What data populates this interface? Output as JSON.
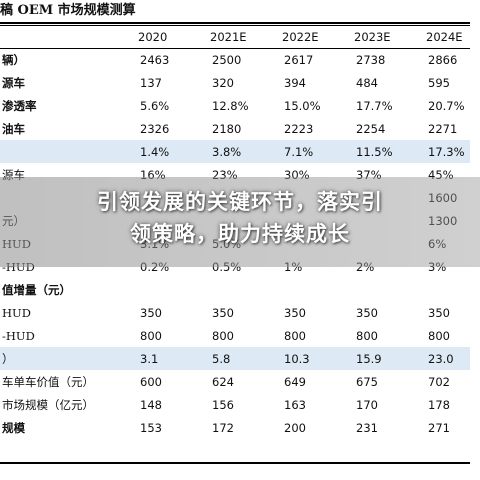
{
  "document": {
    "title": "稿 OEM 市场规模测算",
    "headline": {
      "line1": "引领发展的关键环节，落实引",
      "line2": "领策略，助力持续成长"
    },
    "columns": [
      "",
      "2020",
      "2021E",
      "2022E",
      "2023E",
      "2024E"
    ],
    "rows": [
      {
        "label": "辆）",
        "bold": true,
        "shade": false,
        "values": [
          "2463",
          "2500",
          "2617",
          "2738",
          "2866"
        ]
      },
      {
        "label": "源车",
        "bold": true,
        "shade": false,
        "values": [
          "137",
          "320",
          "394",
          "484",
          "595"
        ]
      },
      {
        "label": "渗透率",
        "bold": true,
        "shade": false,
        "values": [
          "5.6%",
          "12.8%",
          "15.0%",
          "17.7%",
          "20.7%"
        ]
      },
      {
        "label": "油车",
        "bold": true,
        "shade": false,
        "values": [
          "2326",
          "2180",
          "2223",
          "2254",
          "2271"
        ]
      },
      {
        "label": "",
        "bold": false,
        "shade": true,
        "values": [
          "1.4%",
          "3.8%",
          "7.1%",
          "11.5%",
          "17.3%"
        ]
      },
      {
        "label": "源车",
        "bold": false,
        "shade": false,
        "values": [
          "16%",
          "23%",
          "30%",
          "37%",
          "45%"
        ]
      },
      {
        "label": "",
        "bold": false,
        "shade": false,
        "values": [
          "",
          "",
          "",
          "",
          "1600"
        ]
      },
      {
        "label": "元）",
        "bold": false,
        "shade": false,
        "values": [
          "",
          "",
          "",
          "",
          "1300"
        ]
      },
      {
        "label": "HUD",
        "bold": false,
        "shade": false,
        "values": [
          "3.1%",
          "5.0%",
          "",
          "",
          "6%"
        ]
      },
      {
        "label": "-HUD",
        "bold": false,
        "shade": false,
        "values": [
          "0.2%",
          "0.5%",
          "1%",
          "2%",
          "3%"
        ]
      },
      {
        "label": "值增量（元）",
        "bold": true,
        "shade": false,
        "values": [
          "",
          "",
          "",
          "",
          ""
        ]
      },
      {
        "label": "HUD",
        "bold": false,
        "shade": false,
        "values": [
          "350",
          "350",
          "350",
          "350",
          "350"
        ]
      },
      {
        "label": "-HUD",
        "bold": false,
        "shade": false,
        "values": [
          "800",
          "800",
          "800",
          "800",
          "800"
        ]
      },
      {
        "label": "）",
        "bold": false,
        "shade": true,
        "values": [
          "3.1",
          "5.8",
          "10.3",
          "15.9",
          "23.0"
        ]
      },
      {
        "label": "车单车价值（元）",
        "bold": false,
        "shade": false,
        "values": [
          "600",
          "624",
          "649",
          "675",
          "702"
        ]
      },
      {
        "label": "市场规模（亿元）",
        "bold": false,
        "shade": false,
        "values": [
          "148",
          "156",
          "163",
          "170",
          "178"
        ]
      },
      {
        "label": "规模",
        "bold": true,
        "shade": false,
        "values": [
          "153",
          "172",
          "200",
          "231",
          "271"
        ]
      }
    ]
  }
}
